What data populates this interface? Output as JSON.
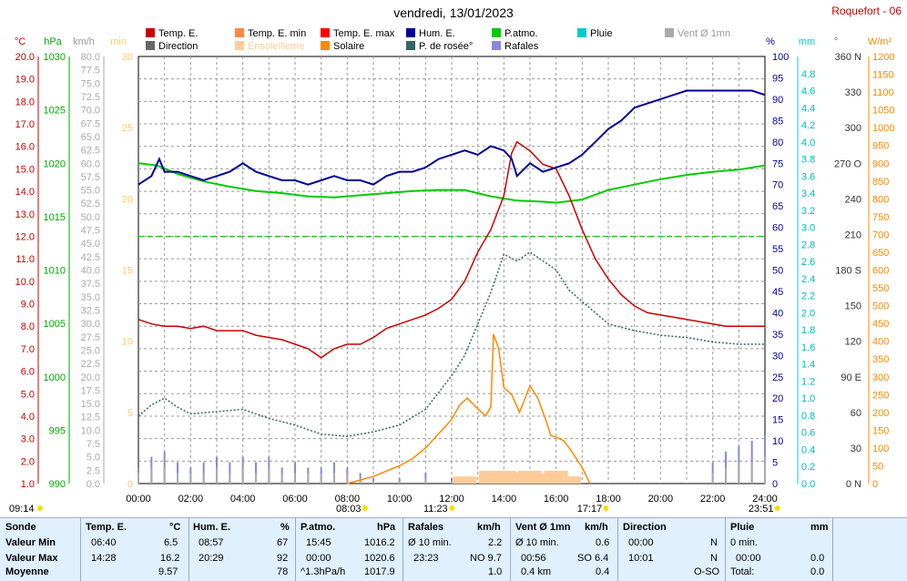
{
  "header": {
    "title": "vendredi, 13/01/2023",
    "station": "Roquefort - 06"
  },
  "legend": [
    {
      "label": "Temp. E.",
      "color": "#cc0000"
    },
    {
      "label": "Temp. E. min",
      "color": "#ff8844"
    },
    {
      "label": "Temp. E. max",
      "color": "#ff0000"
    },
    {
      "label": "Hum. E.",
      "color": "#000099"
    },
    {
      "label": "P.atmo.",
      "color": "#00cc00"
    },
    {
      "label": "Pluie",
      "color": "#00cccc"
    },
    {
      "label": "Vent Ø 1mn",
      "color": "#aaaaaa"
    },
    {
      "label": "Direction",
      "color": "#666666"
    },
    {
      "label": "Ensoleilleme",
      "color": "#ffcc99"
    },
    {
      "label": "Solaire",
      "color": "#ff8800"
    },
    {
      "label": "P. de rosée°",
      "color": "#336666"
    },
    {
      "label": "Rafales",
      "color": "#8888dd"
    }
  ],
  "axes": {
    "units": {
      "temp": "°C",
      "press": "hPa",
      "wind": "km/h",
      "min": "min",
      "hum": "%",
      "rain": "mm",
      "dir": "°",
      "solar": "W/m²"
    },
    "temp": [
      "20.0",
      "19.0",
      "18.0",
      "17.0",
      "16.0",
      "15.0",
      "14.0",
      "13.0",
      "12.0",
      "11.0",
      "10.0",
      "9.0",
      "8.0",
      "7.0",
      "6.0",
      "5.0",
      "4.0",
      "3.0",
      "2.0",
      "1.0"
    ],
    "press": [
      "1030",
      "1025",
      "1020",
      "1015",
      "1010",
      "1005",
      "1000",
      "995",
      "990"
    ],
    "wind": [
      "80.0",
      "77.5",
      "75.0",
      "72.5",
      "70.0",
      "67.5",
      "65.0",
      "62.5",
      "60.0",
      "57.5",
      "55.0",
      "52.5",
      "50.0",
      "47.5",
      "45.0",
      "42.5",
      "40.0",
      "37.5",
      "35.0",
      "32.5",
      "30.0",
      "27.5",
      "25.0",
      "22.5",
      "20.0",
      "17.5",
      "15.0",
      "12.5",
      "10.0",
      "7.5",
      "5.0",
      "2.5",
      "0.0"
    ],
    "min": [
      "30",
      "25",
      "20",
      "15",
      "10",
      "5",
      "0"
    ],
    "hum": [
      "100",
      "95",
      "90",
      "85",
      "80",
      "75",
      "70",
      "65",
      "60",
      "55",
      "50",
      "45",
      "40",
      "35",
      "30",
      "25",
      "20",
      "15",
      "10",
      "5",
      "0"
    ],
    "rain": [
      "4.8",
      "4.6",
      "4.4",
      "4.2",
      "4.0",
      "3.8",
      "3.6",
      "3.4",
      "3.2",
      "3.0",
      "2.8",
      "2.6",
      "2.4",
      "2.2",
      "2.0",
      "1.8",
      "1.6",
      "1.4",
      "1.2",
      "1.0",
      "0.8",
      "0.6",
      "0.4",
      "0.2",
      "0.0"
    ],
    "dir": [
      "360 N",
      "330",
      "300",
      "270 O",
      "240",
      "210",
      "180 S",
      "150",
      "120",
      "90 E",
      "60",
      "30",
      "0 N"
    ],
    "solar": [
      "1200",
      "1150",
      "1100",
      "1050",
      "1000",
      "950",
      "900",
      "850",
      "800",
      "750",
      "700",
      "650",
      "600",
      "550",
      "500",
      "450",
      "400",
      "350",
      "300",
      "250",
      "200",
      "150",
      "100",
      "50",
      "0"
    ],
    "time": [
      "00:00",
      "02:00",
      "04:00",
      "06:00",
      "08:00",
      "10:00",
      "12:00",
      "14:00",
      "16:00",
      "18:00",
      "20:00",
      "22:00",
      "24:00"
    ]
  },
  "sun": {
    "rise_label": "09:14",
    "sunrise": "08:03",
    "noon": "11:23",
    "sunset": "17:17",
    "end": "23:51"
  },
  "chart_data": {
    "type": "line",
    "x_unit": "hours",
    "x_range": [
      0,
      24
    ],
    "series": [
      {
        "name": "Temp. E.",
        "axis": "temp",
        "ylim": [
          1,
          20
        ],
        "color": "#cc0000",
        "x": [
          0,
          0.5,
          1,
          1.5,
          2,
          2.5,
          3,
          3.5,
          4,
          4.5,
          5,
          5.5,
          6,
          6.5,
          7,
          7.5,
          8,
          8.5,
          9,
          9.5,
          10,
          10.5,
          11,
          11.5,
          12,
          12.5,
          13,
          13.5,
          14,
          14.3,
          14.5,
          15,
          15.5,
          16,
          16.5,
          17,
          17.5,
          18,
          18.5,
          19,
          19.5,
          20,
          20.5,
          21,
          21.5,
          22,
          22.5,
          23,
          23.5,
          24
        ],
        "y": [
          8.3,
          8.1,
          8.0,
          8.0,
          7.9,
          8.0,
          7.8,
          7.8,
          7.8,
          7.6,
          7.5,
          7.4,
          7.2,
          7.0,
          6.6,
          7.0,
          7.2,
          7.2,
          7.5,
          7.9,
          8.1,
          8.3,
          8.5,
          8.8,
          9.2,
          10.0,
          11.3,
          12.3,
          13.8,
          15.7,
          16.2,
          15.8,
          15.2,
          15.0,
          13.8,
          12.3,
          11.0,
          10.1,
          9.4,
          8.9,
          8.6,
          8.5,
          8.4,
          8.3,
          8.2,
          8.1,
          8.0,
          8.0,
          8.0,
          8.0
        ]
      },
      {
        "name": "Hum. E.",
        "axis": "hum",
        "ylim": [
          0,
          100
        ],
        "color": "#000099",
        "x": [
          0,
          0.5,
          0.8,
          1,
          1.5,
          2,
          2.5,
          3,
          3.5,
          4,
          4.5,
          5,
          5.5,
          6,
          6.5,
          7,
          7.5,
          8,
          8.5,
          9,
          9.5,
          10,
          10.5,
          11,
          11.5,
          12,
          12.5,
          13,
          13.5,
          14,
          14.3,
          14.5,
          15,
          15.5,
          16,
          16.5,
          17,
          17.5,
          18,
          18.5,
          19,
          19.5,
          20,
          20.5,
          21,
          21.5,
          22,
          22.5,
          23,
          23.5,
          24
        ],
        "y": [
          70,
          72,
          76,
          73,
          73,
          72,
          71,
          72,
          73,
          75,
          73,
          72,
          71,
          71,
          70,
          71,
          72,
          71,
          71,
          70,
          72,
          73,
          73,
          74,
          76,
          77,
          78,
          77,
          79,
          78,
          76,
          72,
          75,
          73,
          74,
          75,
          77,
          80,
          83,
          85,
          88,
          89,
          90,
          91,
          92,
          92,
          92,
          92,
          92,
          92,
          91
        ]
      },
      {
        "name": "P.atmo.",
        "axis": "press",
        "ylim": [
          990,
          1030
        ],
        "color": "#00cc00",
        "x": [
          0,
          0.7,
          1.5,
          2.5,
          3.5,
          4.5,
          5.5,
          6.5,
          7.5,
          8.5,
          9.5,
          10.5,
          11.5,
          12.5,
          13.5,
          14.5,
          15.5,
          16,
          17,
          18,
          19,
          20,
          21,
          22,
          23,
          24
        ],
        "y": [
          1020.0,
          1019.8,
          1019.0,
          1018.3,
          1017.8,
          1017.4,
          1017.2,
          1016.9,
          1016.8,
          1017.0,
          1017.2,
          1017.4,
          1017.5,
          1017.5,
          1016.9,
          1016.5,
          1016.4,
          1016.3,
          1016.6,
          1017.5,
          1018.0,
          1018.5,
          1018.9,
          1019.2,
          1019.4,
          1019.8
        ]
      },
      {
        "name": "P. de rosée°",
        "axis": "temp",
        "ylim": [
          1,
          20
        ],
        "color": "#336666",
        "x": [
          0,
          0.5,
          1,
          1.5,
          2,
          3,
          4,
          5,
          6,
          7,
          8,
          9,
          10,
          11,
          12,
          12.5,
          13,
          13.5,
          14,
          14.5,
          15,
          15.5,
          16,
          16.5,
          17,
          17.5,
          18,
          19,
          20,
          21,
          22,
          23,
          24
        ],
        "y": [
          4.0,
          4.5,
          4.8,
          4.4,
          4.1,
          4.2,
          4.3,
          3.9,
          3.6,
          3.2,
          3.1,
          3.3,
          3.6,
          4.3,
          5.8,
          6.7,
          8.1,
          9.5,
          11.2,
          10.9,
          11.3,
          10.9,
          10.5,
          9.6,
          9.1,
          8.6,
          8.1,
          7.8,
          7.6,
          7.5,
          7.3,
          7.2,
          7.2
        ]
      },
      {
        "name": "Solaire",
        "axis": "solar",
        "ylim": [
          0,
          1200
        ],
        "color": "#ff8800",
        "x": [
          8.0,
          8.5,
          9.0,
          9.5,
          10.0,
          10.5,
          11.0,
          11.5,
          12.0,
          12.3,
          12.6,
          13.0,
          13.3,
          13.5,
          13.6,
          13.8,
          14.0,
          14.3,
          14.6,
          15.0,
          15.3,
          15.6,
          15.8,
          16.0,
          16.3,
          16.6,
          17.0,
          17.3
        ],
        "y": [
          0,
          10,
          20,
          35,
          50,
          70,
          100,
          140,
          180,
          220,
          240,
          210,
          190,
          215,
          420,
          380,
          270,
          250,
          200,
          275,
          240,
          180,
          135,
          130,
          120,
          90,
          45,
          0
        ]
      },
      {
        "name": "Ensoleilleme",
        "axis": "min",
        "ylim": [
          0,
          30
        ],
        "color": "#ffcc99",
        "x": [
          12.5,
          13.5,
          14.0,
          14.5,
          15.0,
          15.5,
          16.0,
          16.5
        ],
        "y": [
          0.5,
          0.9,
          0.9,
          0.8,
          0.9,
          0.7,
          0.9,
          0.5
        ]
      },
      {
        "name": "Rafales",
        "axis": "wind",
        "ylim": [
          0,
          80
        ],
        "color": "#8888dd",
        "x": [
          0,
          0.5,
          1,
          1.5,
          2,
          2.5,
          3,
          3.5,
          4,
          4.5,
          5,
          5.5,
          6,
          6.5,
          7,
          7.5,
          8,
          8.5,
          9,
          10,
          11,
          12,
          13,
          14,
          15,
          16,
          17,
          18,
          19,
          20,
          21,
          22,
          22.5,
          23,
          23.5,
          24
        ],
        "y": [
          3,
          5,
          6,
          4,
          3,
          4,
          5,
          4,
          5,
          4,
          5,
          3,
          4,
          3,
          3,
          4,
          3,
          2,
          1,
          1,
          2,
          1,
          0,
          0,
          0,
          0,
          0,
          0,
          0,
          0,
          0,
          4,
          6,
          7,
          8,
          9
        ]
      },
      {
        "name": "Vent Ø 1mn",
        "axis": "wind",
        "ylim": [
          0,
          80
        ],
        "color": "#aaaaaa",
        "x": [
          0,
          0.5,
          1,
          1.5,
          2,
          2.5,
          3,
          3.5,
          4,
          4.5,
          5,
          5.5,
          6,
          6.5,
          7,
          7.5,
          8,
          8.5,
          9,
          10,
          11,
          12,
          13,
          14,
          15,
          16,
          17,
          18,
          19,
          20,
          21,
          22,
          22.5,
          23,
          23.5,
          24
        ],
        "y": [
          2,
          3,
          3,
          2,
          2,
          2,
          3,
          2,
          3,
          2,
          3,
          2,
          2,
          2,
          2,
          2,
          2,
          1,
          0.5,
          0.5,
          1,
          0.5,
          0,
          0,
          0,
          0,
          0,
          0,
          0,
          0,
          0,
          2,
          3,
          4,
          4,
          5
        ]
      }
    ]
  },
  "stats": {
    "sonde": {
      "h": "Sonde",
      "min": "Valeur Min",
      "max": "Valeur Max",
      "avg": "Moyenne"
    },
    "temp": {
      "h": "Temp. E.",
      "u": "°C",
      "min_t": "06:40",
      "min_v": "6.5",
      "max_t": "14:28",
      "max_v": "16.2",
      "avg": "9.57"
    },
    "hum": {
      "h": "Hum. E.",
      "u": "%",
      "min_t": "08:57",
      "min_v": "67",
      "max_t": "20:29",
      "max_v": "92",
      "avg": "78"
    },
    "press": {
      "h": "P.atmo.",
      "u": "hPa",
      "min_t": "15:45",
      "min_v": "1016.2",
      "max_t": "00:00",
      "max_v": "1020.6",
      "avg_t": "^1.3hPa/h",
      "avg": "1017.9"
    },
    "gust": {
      "h": "Rafales",
      "u": "km/h",
      "min_t": "Ø 10 min.",
      "min_v": "2.2",
      "max_t": "23:23",
      "max_v": "NO 9.7",
      "avg": "1.0"
    },
    "wind": {
      "h": "Vent Ø 1mn",
      "u": "km/h",
      "min_t": "Ø 10 min.",
      "min_v": "0.6",
      "max_t": "00:56",
      "max_v": "SO 6.4",
      "avg_t": "0.4 km",
      "avg": "0.4"
    },
    "dir": {
      "h": "Direction",
      "min_t": "00:00",
      "min_v": "N",
      "max_t": "10:01",
      "max_v": "N",
      "avg": "O-SO"
    },
    "rain": {
      "h": "Pluie",
      "u": "mm",
      "min_t": "0 min.",
      "max_t": "00:00",
      "max_v": "0.0",
      "avg_t": "Total:",
      "avg": "0.0"
    }
  }
}
